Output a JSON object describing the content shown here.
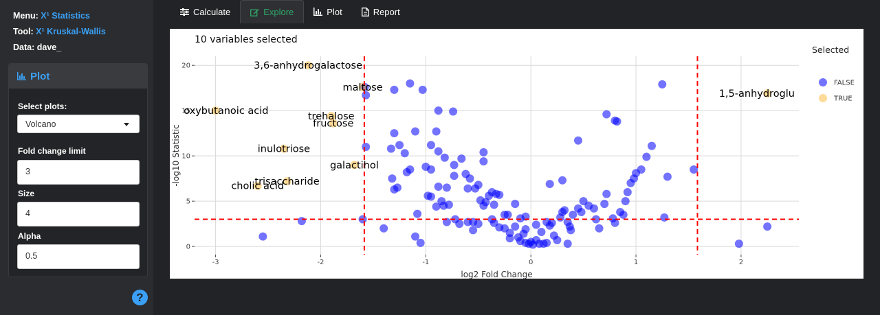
{
  "sidebar": {
    "menu_label": "Menu:",
    "menu_x": "X¹",
    "menu_value": "Statistics",
    "tool_label": "Tool:",
    "tool_x": "X¹",
    "tool_value": "Kruskal-Wallis",
    "data_label": "Data:",
    "data_value": "dave_",
    "panel_title": "Plot",
    "select_plots_label": "Select plots:",
    "select_plots_value": "Volcano",
    "fold_change_label": "Fold change limit",
    "fold_change_value": "3",
    "size_label": "Size",
    "size_value": "4",
    "alpha_label": "Alpha",
    "alpha_value": "0.5",
    "help_glyph": "?"
  },
  "tabs": [
    {
      "label": "Calculate",
      "icon": "sliders-icon"
    },
    {
      "label": "Explore",
      "icon": "edit-icon"
    },
    {
      "label": "Plot",
      "icon": "bar-chart-icon"
    },
    {
      "label": "Report",
      "icon": "document-icon"
    }
  ],
  "active_tab": "Explore",
  "colors": {
    "accent": "#3ba0f5",
    "active_tab": "#2ea86b",
    "false_points": "#0000ff",
    "true_points": "#ffa500",
    "threshold_lines": "#ff0000"
  },
  "chart_data": {
    "type": "scatter",
    "annotation": "10 variables selected",
    "xlabel": "log2 Fold Change",
    "ylabel": "-log10 Statistic",
    "xlim": [
      -3.2,
      2.55
    ],
    "ylim": [
      -0.9,
      21
    ],
    "xticks": [
      -3,
      -2,
      -1,
      0,
      1,
      2
    ],
    "yticks": [
      0,
      5,
      10,
      15,
      20
    ],
    "grid": true,
    "thresholds": {
      "x": [
        -1.585,
        1.585
      ],
      "y": 3
    },
    "legend": {
      "title": "Selected",
      "position": "right",
      "entries": [
        "FALSE",
        "TRUE"
      ]
    },
    "series": [
      {
        "name": "FALSE",
        "points": [
          [
            -1.58,
            17.6
          ],
          [
            -1.57,
            16.7
          ],
          [
            -1.57,
            11.0
          ],
          [
            -1.6,
            3.0
          ],
          [
            -1.4,
            2.0
          ],
          [
            -2.55,
            1.1
          ],
          [
            -2.18,
            2.8
          ],
          [
            -1.32,
            7.5
          ],
          [
            -1.3,
            12.5
          ],
          [
            -1.3,
            17.3
          ],
          [
            -1.25,
            11.2
          ],
          [
            -1.33,
            10.8
          ],
          [
            -1.27,
            6.5
          ],
          [
            -1.3,
            6.3
          ],
          [
            -1.2,
            10.3
          ],
          [
            -1.15,
            8.5
          ],
          [
            -1.1,
            12.7
          ],
          [
            -1.18,
            8.2
          ],
          [
            -1.15,
            18.0
          ],
          [
            -1.03,
            17.3
          ],
          [
            -1.1,
            1.1
          ],
          [
            -1.05,
            0.4
          ],
          [
            -1.08,
            3.6
          ],
          [
            -1.0,
            8.8
          ],
          [
            -0.95,
            11.2
          ],
          [
            -0.88,
            10.5
          ],
          [
            -0.95,
            8.5
          ],
          [
            -0.98,
            5.6
          ],
          [
            -0.95,
            5.5
          ],
          [
            -0.9,
            4.4
          ],
          [
            -0.85,
            5.0
          ],
          [
            -0.83,
            4.5
          ],
          [
            -0.88,
            6.6
          ],
          [
            -0.8,
            6.5
          ],
          [
            -0.9,
            12.7
          ],
          [
            -0.88,
            15.0
          ],
          [
            -0.74,
            14.9
          ],
          [
            -0.82,
            9.8
          ],
          [
            -0.73,
            7.8
          ],
          [
            -0.78,
            4.6
          ],
          [
            -0.72,
            3.0
          ],
          [
            -0.8,
            2.7
          ],
          [
            -0.73,
            9.0
          ],
          [
            -0.66,
            9.7
          ],
          [
            -0.62,
            8.0
          ],
          [
            -0.58,
            7.5
          ],
          [
            -0.6,
            6.4
          ],
          [
            -0.68,
            2.5
          ],
          [
            -0.6,
            2.7
          ],
          [
            -0.55,
            2.7
          ],
          [
            -0.55,
            1.8
          ],
          [
            -0.5,
            2.5
          ],
          [
            -0.45,
            10.4
          ],
          [
            -0.45,
            9.4
          ],
          [
            -0.5,
            6.8
          ],
          [
            -0.53,
            6.4
          ],
          [
            -0.48,
            5.1
          ],
          [
            -0.45,
            4.5
          ],
          [
            -0.43,
            4.9
          ],
          [
            -0.4,
            5.6
          ],
          [
            -0.37,
            3.0
          ],
          [
            -0.35,
            4.6
          ],
          [
            -0.37,
            6.0
          ],
          [
            -0.33,
            5.8
          ],
          [
            -0.3,
            5.7
          ],
          [
            -0.35,
            2.6
          ],
          [
            -0.3,
            2.1
          ],
          [
            -0.25,
            3.5
          ],
          [
            -0.22,
            3.5
          ],
          [
            -0.25,
            2.0
          ],
          [
            -0.2,
            1.5
          ],
          [
            -0.15,
            4.7
          ],
          [
            -0.1,
            3.1
          ],
          [
            -0.12,
            1.0
          ],
          [
            -0.1,
            0.6
          ],
          [
            -0.05,
            0.4
          ],
          [
            -0.07,
            1.4
          ],
          [
            -0.05,
            1.9
          ],
          [
            -0.02,
            0.3
          ],
          [
            0.0,
            0.5
          ],
          [
            0.02,
            0.2
          ],
          [
            0.05,
            0.7
          ],
          [
            0.08,
            0.3
          ],
          [
            0.1,
            1.6
          ],
          [
            0.12,
            0.3
          ],
          [
            0.15,
            0.4
          ],
          [
            0.18,
            2.3
          ],
          [
            0.2,
            2.6
          ],
          [
            0.22,
            1.2
          ],
          [
            0.25,
            0.7
          ],
          [
            0.28,
            3.2
          ],
          [
            0.3,
            3.8
          ],
          [
            0.32,
            4.0
          ],
          [
            0.35,
            2.7
          ],
          [
            0.37,
            2.2
          ],
          [
            0.38,
            1.8
          ],
          [
            0.4,
            3.5
          ],
          [
            0.45,
            4.2
          ],
          [
            0.48,
            3.8
          ],
          [
            0.5,
            5.0
          ],
          [
            0.55,
            4.5
          ],
          [
            0.6,
            4.2
          ],
          [
            0.62,
            3.0
          ],
          [
            0.65,
            2.0
          ],
          [
            0.7,
            4.7
          ],
          [
            0.72,
            5.8
          ],
          [
            0.78,
            3.1
          ],
          [
            0.8,
            2.6
          ],
          [
            0.85,
            3.8
          ],
          [
            0.88,
            3.5
          ],
          [
            0.9,
            5.0
          ],
          [
            0.92,
            6.0
          ],
          [
            0.95,
            7.0
          ],
          [
            0.98,
            7.5
          ],
          [
            1.0,
            8.1
          ],
          [
            1.05,
            8.5
          ],
          [
            1.1,
            9.9
          ],
          [
            1.15,
            11.1
          ],
          [
            1.25,
            17.9
          ],
          [
            1.27,
            3.2
          ],
          [
            1.3,
            7.7
          ],
          [
            1.55,
            8.5
          ],
          [
            1.98,
            0.3
          ],
          [
            2.25,
            2.2
          ],
          [
            0.72,
            14.6
          ],
          [
            0.8,
            13.9
          ],
          [
            0.82,
            13.8
          ],
          [
            0.45,
            11.7
          ],
          [
            0.3,
            7.3
          ],
          [
            0.18,
            6.9
          ],
          [
            -0.05,
            3.3
          ],
          [
            -0.2,
            0.9
          ],
          [
            0.35,
            0.3
          ],
          [
            0.05,
            2.4
          ],
          [
            -0.15,
            2.2
          ],
          [
            0.15,
            2.7
          ]
        ]
      },
      {
        "name": "TRUE",
        "points": [
          [
            -2.12,
            20.0
          ],
          [
            -1.6,
            17.6
          ],
          [
            -3.0,
            15.0
          ],
          [
            -1.9,
            14.4
          ],
          [
            -1.88,
            13.6
          ],
          [
            -2.35,
            10.8
          ],
          [
            -1.68,
            9.0
          ],
          [
            -2.32,
            7.2
          ],
          [
            -2.6,
            6.7
          ],
          [
            2.25,
            16.9
          ]
        ]
      }
    ],
    "labels": [
      {
        "text": "3,6-anhydrogalactose",
        "x": -2.12,
        "y": 20.0
      },
      {
        "text": "maltose",
        "x": -1.6,
        "y": 17.6
      },
      {
        "text": "oxybutanoic acid",
        "x": -2.9,
        "y": 15.0
      },
      {
        "text": "trehalose",
        "x": -1.9,
        "y": 14.4
      },
      {
        "text": "fructose",
        "x": -1.88,
        "y": 13.6
      },
      {
        "text": "inulotriose",
        "x": -2.35,
        "y": 10.8
      },
      {
        "text": "galactihol",
        "x": -1.68,
        "y": 9.0
      },
      {
        "text": "trisaccharide",
        "x": -2.32,
        "y": 7.2
      },
      {
        "text": "cholic acid",
        "x": -2.6,
        "y": 6.7
      },
      {
        "text": "1,5-anhydroglu",
        "x": 2.15,
        "y": 16.9
      }
    ]
  }
}
